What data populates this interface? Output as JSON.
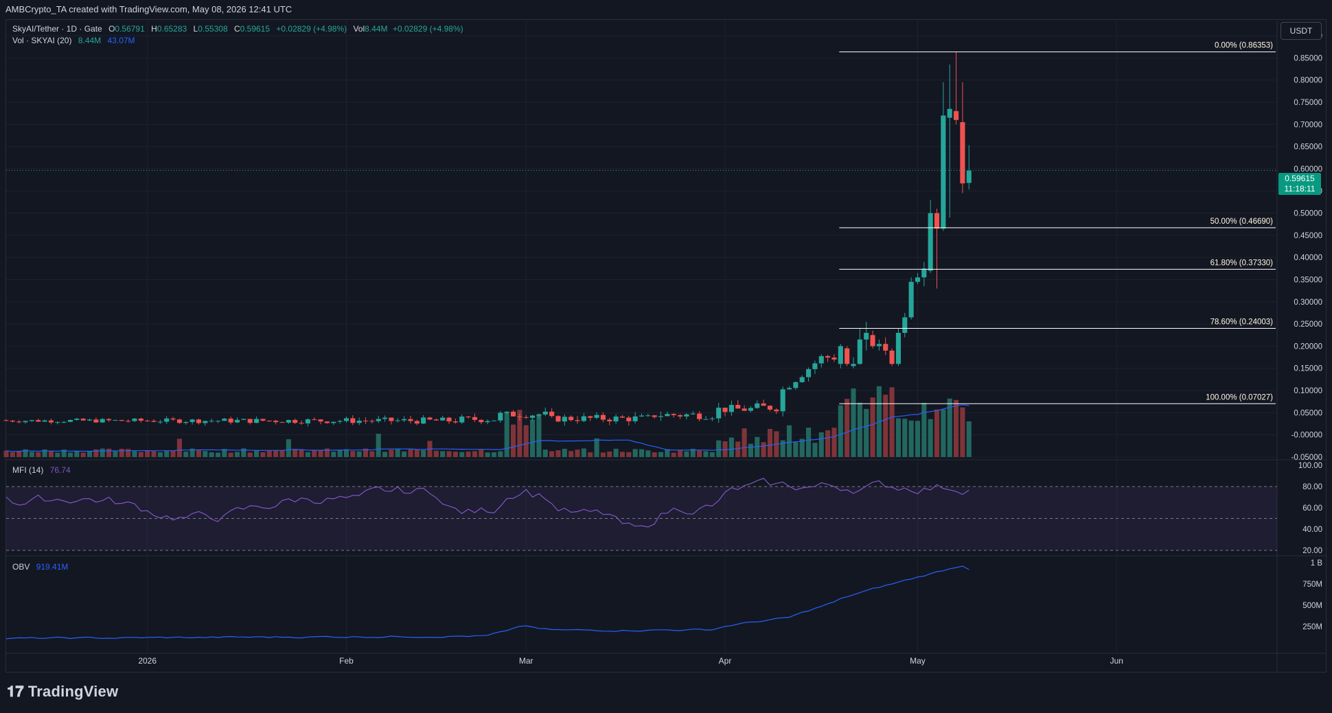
{
  "header": {
    "attribution": "AMBCrypto_TA created with TradingView.com, May 08, 2026 12:41 UTC"
  },
  "legend": {
    "symbol": "SkyAI/Tether · 1D · Gate",
    "o_label": "O",
    "o": "0.56791",
    "h_label": "H",
    "h": "0.65283",
    "l_label": "L",
    "l": "0.55308",
    "c_label": "C",
    "c": "0.59615",
    "change": "+0.02829 (+4.98%)",
    "vol_label": "Vol",
    "vol": "8.44M",
    "vol_change": "+0.02829 (+4.98%)",
    "vol_indicator": "Vol · SKYAI (20)",
    "vol_value": "8.44M",
    "vol_ma": "43.07M",
    "mfi_label": "MFI (14)",
    "mfi_value": "76.74",
    "obv_label": "OBV",
    "obv_value": "919.41M"
  },
  "currency_button": "USDT",
  "last_price": {
    "price": "0.59615",
    "countdown": "11:18:11"
  },
  "brand": "TradingView",
  "colors": {
    "background": "#131722",
    "up": "#26a69a",
    "down": "#ef5350",
    "vol_up": "#22675f",
    "vol_down": "#7f3439",
    "vol_ma": "#2962ff",
    "mfi": "#7e57c2",
    "obv": "#2962ff",
    "fib": "#ffffff",
    "grid": "#1e222d",
    "text": "#d1d4dc",
    "last_price_bg": "#089981"
  },
  "chart_data": [
    {
      "type": "candlestick",
      "title": "SkyAI/Tether · 1D · Gate",
      "y_axis_ticks": [
        "0.90000",
        "0.85000",
        "0.80000",
        "0.75000",
        "0.70000",
        "0.65000",
        "0.60000",
        "0.55000",
        "0.50000",
        "0.45000",
        "0.40000",
        "0.35000",
        "0.30000",
        "0.25000",
        "0.20000",
        "0.15000",
        "0.10000",
        "0.05000",
        "-0.00000",
        "-0.05000"
      ],
      "ylim": [
        -0.05,
        0.9
      ],
      "x_axis_ticks": [
        "2026",
        "Feb",
        "Mar",
        "Apr",
        "May",
        "Jun"
      ],
      "fib_levels": [
        {
          "label": "0.00% (0.86353)",
          "value": 0.86353
        },
        {
          "label": "50.00% (0.46690)",
          "value": 0.4669
        },
        {
          "label": "61.80% (0.37330)",
          "value": 0.3733
        },
        {
          "label": "78.60% (0.24003)",
          "value": 0.24003
        },
        {
          "label": "100.00% (0.07027)",
          "value": 0.07027
        }
      ],
      "candles": [
        {
          "date": "2026-04-19",
          "o": 0.16,
          "h": 0.205,
          "l": 0.15,
          "c": 0.2
        },
        {
          "date": "2026-04-20",
          "o": 0.195,
          "h": 0.2,
          "l": 0.155,
          "c": 0.16
        },
        {
          "date": "2026-04-21",
          "o": 0.155,
          "h": 0.175,
          "l": 0.15,
          "c": 0.16
        },
        {
          "date": "2026-04-22",
          "o": 0.16,
          "h": 0.24,
          "l": 0.158,
          "c": 0.215
        },
        {
          "date": "2026-04-23",
          "o": 0.215,
          "h": 0.255,
          "l": 0.19,
          "c": 0.23
        },
        {
          "date": "2026-04-24",
          "o": 0.225,
          "h": 0.235,
          "l": 0.195,
          "c": 0.2
        },
        {
          "date": "2026-04-25",
          "o": 0.2,
          "h": 0.215,
          "l": 0.19,
          "c": 0.205
        },
        {
          "date": "2026-04-26",
          "o": 0.205,
          "h": 0.22,
          "l": 0.18,
          "c": 0.19
        },
        {
          "date": "2026-04-27",
          "o": 0.19,
          "h": 0.195,
          "l": 0.155,
          "c": 0.16
        },
        {
          "date": "2026-04-28",
          "o": 0.16,
          "h": 0.24,
          "l": 0.155,
          "c": 0.23
        },
        {
          "date": "2026-04-29",
          "o": 0.23,
          "h": 0.275,
          "l": 0.22,
          "c": 0.265
        },
        {
          "date": "2026-04-30",
          "o": 0.265,
          "h": 0.355,
          "l": 0.26,
          "c": 0.345
        },
        {
          "date": "2026-05-01",
          "o": 0.345,
          "h": 0.365,
          "l": 0.34,
          "c": 0.355
        },
        {
          "date": "2026-05-02",
          "o": 0.355,
          "h": 0.39,
          "l": 0.335,
          "c": 0.375
        },
        {
          "date": "2026-05-03",
          "o": 0.37,
          "h": 0.53,
          "l": 0.365,
          "c": 0.5
        },
        {
          "date": "2026-05-04",
          "o": 0.5,
          "h": 0.51,
          "l": 0.33,
          "c": 0.465
        },
        {
          "date": "2026-05-05",
          "o": 0.465,
          "h": 0.795,
          "l": 0.46,
          "c": 0.72
        },
        {
          "date": "2026-05-06",
          "o": 0.715,
          "h": 0.835,
          "l": 0.49,
          "c": 0.735
        },
        {
          "date": "2026-05-07",
          "o": 0.73,
          "h": 0.864,
          "l": 0.7,
          "c": 0.71
        },
        {
          "date": "2026-05-08",
          "o": 0.705,
          "h": 0.795,
          "l": 0.545,
          "c": 0.567
        },
        {
          "date": "2026-05-09",
          "o": 0.568,
          "h": 0.653,
          "l": 0.553,
          "c": 0.596
        }
      ]
    },
    {
      "type": "bar",
      "title": "Vol · SKYAI (20)",
      "description_values": "volume relative heights 0-1 (early period baseline, late spike)",
      "ma_label": "43.07M"
    },
    {
      "type": "line",
      "title": "MFI (14)",
      "y_axis_ticks": [
        "100.00",
        "80.00",
        "60.00",
        "40.00",
        "20.00"
      ],
      "ylim": [
        20,
        100
      ],
      "bands": [
        80,
        50,
        20
      ],
      "last_value": 76.74
    },
    {
      "type": "line",
      "title": "OBV",
      "y_axis_ticks": [
        "1 B",
        "750M",
        "500M",
        "250M"
      ],
      "ylim": [
        0,
        1000
      ],
      "last_value_millions": 919.41
    }
  ]
}
